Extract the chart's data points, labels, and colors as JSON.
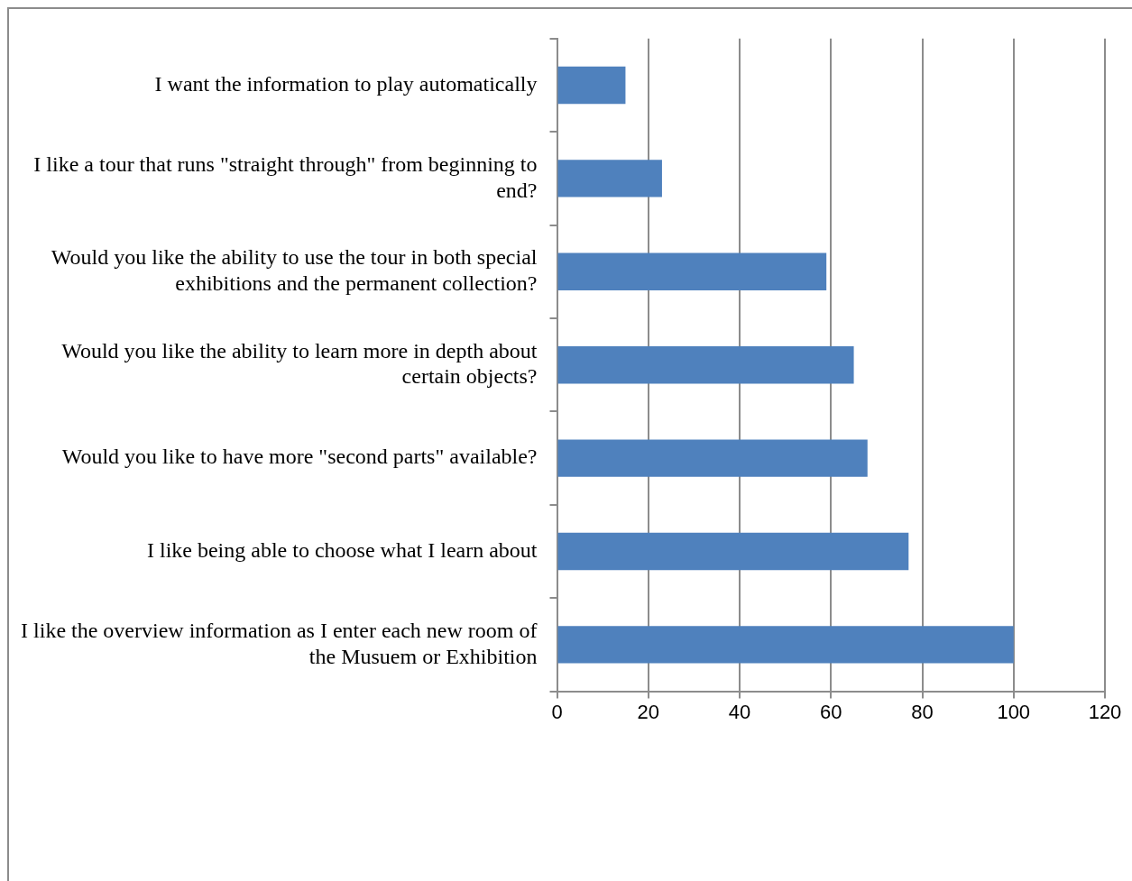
{
  "chart_data": {
    "type": "bar",
    "orientation": "horizontal",
    "categories": [
      "I want the information to play automatically",
      "I like a tour that runs \"straight through\" from beginning to end?",
      "Would you like the ability to use the tour in both special exhibitions and the permanent collection?",
      "Would you like the ability to learn more in depth about certain objects?",
      "Would you like to have more \"second parts\" available?",
      "I like being able to choose what I learn about",
      "I like the overview information as I enter each new room of the Musuem or Exhibition"
    ],
    "values": [
      15,
      23,
      59,
      65,
      68,
      77,
      100
    ],
    "color": "#4f81bd",
    "xlim": [
      0,
      120
    ],
    "xticks": [
      0,
      20,
      40,
      60,
      80,
      100,
      120
    ],
    "grid": "x",
    "legend": false
  }
}
